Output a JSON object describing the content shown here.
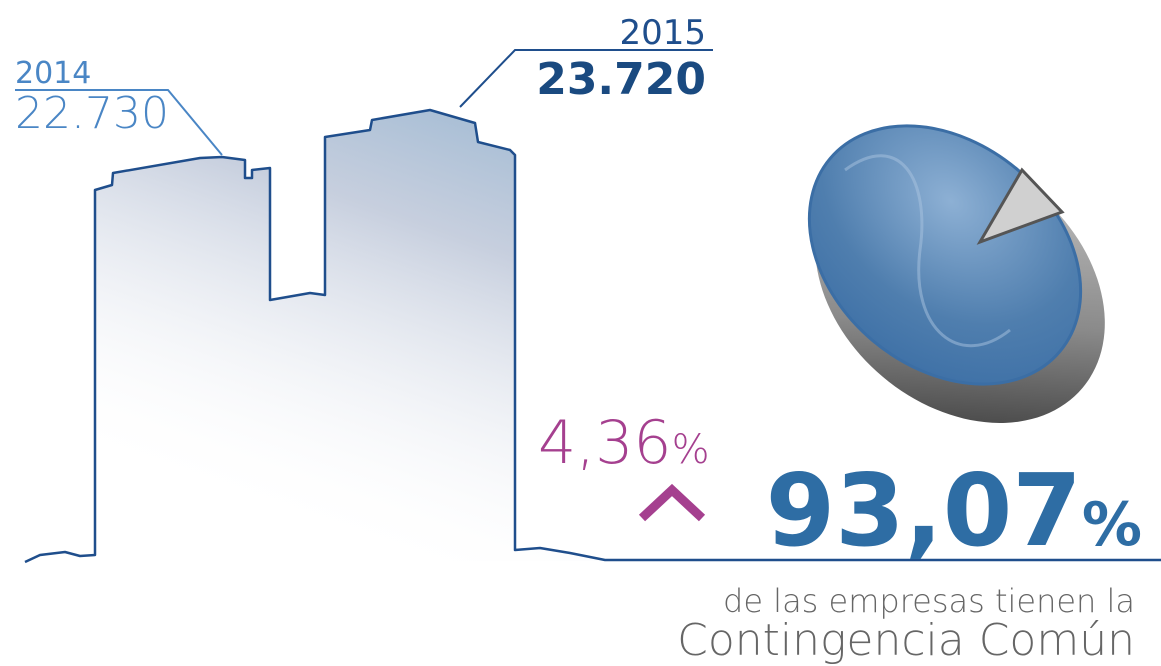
{
  "left_building": {
    "year": "2014",
    "value": "22.730"
  },
  "right_building": {
    "year": "2015",
    "value": "23.720"
  },
  "growth": {
    "value": "4,36",
    "unit": "%"
  },
  "highlight": {
    "value": "93,07",
    "unit": "%",
    "line1": "de las empresas tienen la",
    "line2": "Contingencia Común"
  }
}
